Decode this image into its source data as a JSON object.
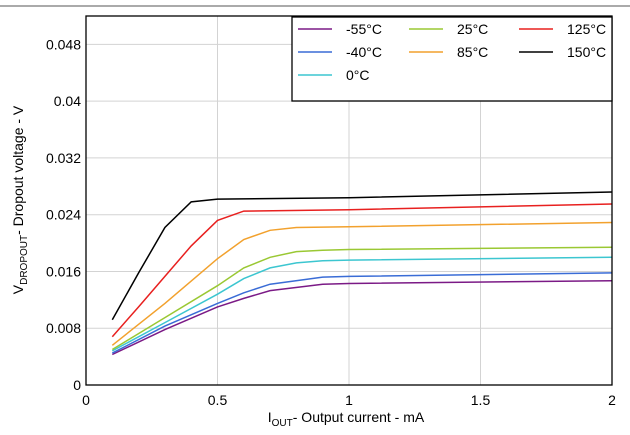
{
  "colors": {
    "grid": "#d3d3d3",
    "frame": "#000000",
    "topRule": "#555555"
  },
  "chart_data": {
    "type": "line",
    "xlabel": {
      "main": "I",
      "sub": "OUT",
      "rest": "- Output current - mA"
    },
    "ylabel": {
      "main": "V",
      "sub": "DROPOUT",
      "rest": "- Dropout voltage - V"
    },
    "xlim": [
      0,
      2
    ],
    "ylim": [
      0,
      0.052
    ],
    "x_ticks": [
      0,
      0.5,
      1,
      1.5,
      2
    ],
    "x_tick_labels": [
      "0",
      "0.5",
      "1",
      "1.5",
      "2"
    ],
    "y_ticks": [
      0,
      0.008,
      0.016,
      0.024,
      0.032,
      0.04,
      0.048
    ],
    "y_tick_labels": [
      "0",
      "0.008",
      "0.016",
      "0.024",
      "0.032",
      "0.04",
      "0.048"
    ],
    "grid": true,
    "legend_position": "top-right",
    "series": [
      {
        "name": "-55°C",
        "color": "#7b1a86",
        "x": [
          0.1,
          0.3,
          0.5,
          0.6,
          0.7,
          0.9,
          1.0,
          2.0
        ],
        "y": [
          0.0043,
          0.0078,
          0.011,
          0.0122,
          0.0133,
          0.0142,
          0.0143,
          0.0147
        ]
      },
      {
        "name": "-40°C",
        "color": "#3a6cd6",
        "x": [
          0.1,
          0.3,
          0.5,
          0.6,
          0.7,
          0.9,
          1.0,
          2.0
        ],
        "y": [
          0.0045,
          0.0083,
          0.0115,
          0.013,
          0.0142,
          0.0152,
          0.0153,
          0.0158
        ]
      },
      {
        "name": "0°C",
        "color": "#3cc6d0",
        "x": [
          0.1,
          0.3,
          0.5,
          0.6,
          0.7,
          0.8,
          0.9,
          1.0,
          2.0
        ],
        "y": [
          0.0048,
          0.0088,
          0.0128,
          0.015,
          0.0165,
          0.0172,
          0.0175,
          0.0176,
          0.018
        ]
      },
      {
        "name": "25°C",
        "color": "#9ac833",
        "x": [
          0.1,
          0.3,
          0.5,
          0.6,
          0.7,
          0.8,
          0.9,
          1.0,
          2.0
        ],
        "y": [
          0.005,
          0.0095,
          0.014,
          0.0165,
          0.018,
          0.0188,
          0.019,
          0.0191,
          0.0194
        ]
      },
      {
        "name": "85°C",
        "color": "#f2a12d",
        "x": [
          0.1,
          0.3,
          0.5,
          0.6,
          0.7,
          0.8,
          1.0,
          2.0
        ],
        "y": [
          0.0056,
          0.0115,
          0.0178,
          0.0205,
          0.0218,
          0.0222,
          0.0223,
          0.0229
        ]
      },
      {
        "name": "125°C",
        "color": "#e8201f",
        "x": [
          0.1,
          0.2,
          0.3,
          0.4,
          0.5,
          0.6,
          1.0,
          2.0
        ],
        "y": [
          0.0068,
          0.011,
          0.0153,
          0.0196,
          0.0232,
          0.0245,
          0.0247,
          0.0255
        ]
      },
      {
        "name": "150°C",
        "color": "#000000",
        "x": [
          0.1,
          0.2,
          0.3,
          0.4,
          0.5,
          1.0,
          2.0
        ],
        "y": [
          0.0092,
          0.0158,
          0.0222,
          0.0258,
          0.0262,
          0.0264,
          0.0272
        ]
      }
    ]
  }
}
